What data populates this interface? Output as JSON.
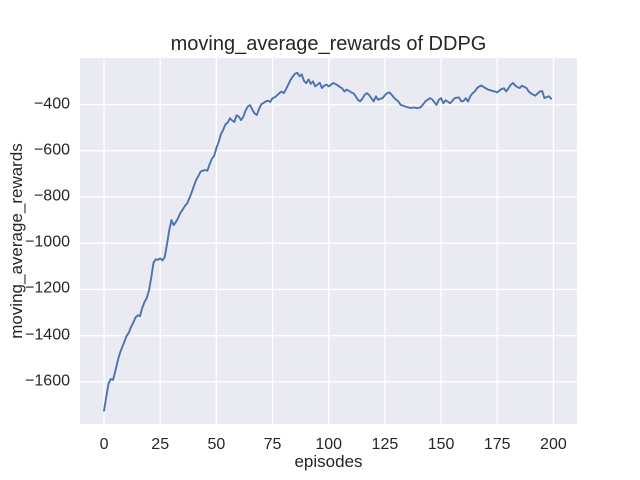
{
  "chart_data": {
    "type": "line",
    "title": "moving_average_rewards of DDPG",
    "xlabel": "episodes",
    "ylabel": "moving_average_rewards",
    "x_ticks": [
      0,
      25,
      50,
      75,
      100,
      125,
      150,
      175,
      200
    ],
    "y_ticks": [
      -400,
      -600,
      -800,
      -1000,
      -1200,
      -1400,
      -1600
    ],
    "xlim": [
      -10.7,
      210.5
    ],
    "ylim": [
      -1783,
      -198
    ],
    "grid": true,
    "legend": false,
    "style": {
      "fig_bg": "#ffffff",
      "axes_bg": "#eaeaf2",
      "grid_color": "#ffffff",
      "line_color": "#4c72b0",
      "text_color": "#262626"
    },
    "series": [
      {
        "name": "moving_average_rewards",
        "x_start": 0,
        "x_step": 1,
        "values": [
          -1725,
          -1665,
          -1608,
          -1588,
          -1592,
          -1555,
          -1513,
          -1478,
          -1452,
          -1428,
          -1402,
          -1388,
          -1363,
          -1345,
          -1322,
          -1312,
          -1316,
          -1280,
          -1255,
          -1238,
          -1205,
          -1150,
          -1085,
          -1070,
          -1072,
          -1066,
          -1075,
          -1060,
          -1005,
          -945,
          -900,
          -922,
          -908,
          -890,
          -868,
          -855,
          -838,
          -828,
          -805,
          -780,
          -752,
          -726,
          -708,
          -690,
          -686,
          -683,
          -686,
          -658,
          -634,
          -622,
          -588,
          -562,
          -528,
          -510,
          -486,
          -478,
          -459,
          -468,
          -475,
          -446,
          -452,
          -467,
          -452,
          -425,
          -408,
          -402,
          -422,
          -438,
          -445,
          -418,
          -398,
          -393,
          -386,
          -383,
          -388,
          -372,
          -368,
          -360,
          -350,
          -343,
          -350,
          -333,
          -313,
          -293,
          -278,
          -266,
          -262,
          -277,
          -269,
          -298,
          -307,
          -291,
          -310,
          -299,
          -321,
          -313,
          -305,
          -328,
          -318,
          -313,
          -321,
          -314,
          -306,
          -311,
          -316,
          -324,
          -330,
          -343,
          -335,
          -340,
          -347,
          -351,
          -364,
          -379,
          -386,
          -374,
          -357,
          -350,
          -359,
          -372,
          -386,
          -364,
          -379,
          -374,
          -372,
          -359,
          -350,
          -347,
          -357,
          -369,
          -379,
          -386,
          -401,
          -404,
          -408,
          -411,
          -413,
          -414,
          -412,
          -415,
          -414,
          -411,
          -399,
          -386,
          -379,
          -372,
          -377,
          -389,
          -401,
          -379,
          -372,
          -394,
          -381,
          -387,
          -394,
          -384,
          -372,
          -370,
          -369,
          -386,
          -384,
          -372,
          -386,
          -364,
          -351,
          -343,
          -329,
          -321,
          -317,
          -324,
          -330,
          -335,
          -338,
          -341,
          -343,
          -347,
          -339,
          -332,
          -329,
          -343,
          -329,
          -314,
          -306,
          -317,
          -324,
          -328,
          -318,
          -323,
          -328,
          -343,
          -351,
          -357,
          -361,
          -351,
          -343,
          -341,
          -372,
          -367,
          -364,
          -374
        ]
      }
    ]
  }
}
